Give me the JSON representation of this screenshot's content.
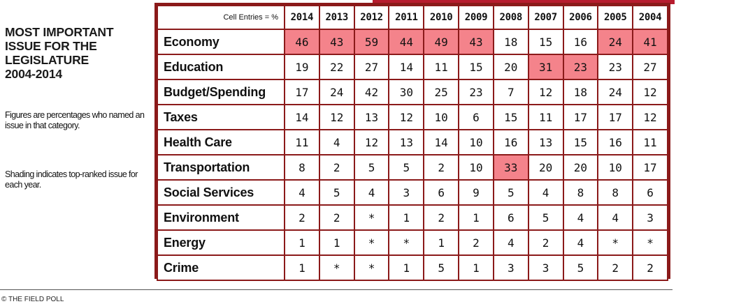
{
  "sidebar": {
    "title_lines": [
      "MOST IMPORTANT",
      "ISSUE FOR THE",
      "LEGISLATURE",
      "2004-2014"
    ],
    "note_1": "Figures are percentages who named an issue in that category.",
    "note_2": "Shading indicates top-ranked issue for each year."
  },
  "table": {
    "corner_label": "Cell Entries = %",
    "years": [
      "2014",
      "2013",
      "2012",
      "2011",
      "2010",
      "2009",
      "2008",
      "2007",
      "2006",
      "2005",
      "2004"
    ],
    "rows": [
      {
        "label": "Economy",
        "values": [
          "46",
          "43",
          "59",
          "44",
          "49",
          "43",
          "18",
          "15",
          "16",
          "24",
          "41"
        ],
        "top": [
          true,
          true,
          true,
          true,
          true,
          true,
          false,
          false,
          false,
          true,
          true
        ]
      },
      {
        "label": "Education",
        "values": [
          "19",
          "22",
          "27",
          "14",
          "11",
          "15",
          "20",
          "31",
          "23",
          "23",
          "27"
        ],
        "top": [
          false,
          false,
          false,
          false,
          false,
          false,
          false,
          true,
          true,
          false,
          false
        ]
      },
      {
        "label": "Budget/Spending",
        "values": [
          "17",
          "24",
          "42",
          "30",
          "25",
          "23",
          "7",
          "12",
          "18",
          "24",
          "12"
        ],
        "top": [
          false,
          false,
          false,
          false,
          false,
          false,
          false,
          false,
          false,
          false,
          false
        ]
      },
      {
        "label": "Taxes",
        "values": [
          "14",
          "12",
          "13",
          "12",
          "10",
          "6",
          "15",
          "11",
          "17",
          "17",
          "12"
        ],
        "top": [
          false,
          false,
          false,
          false,
          false,
          false,
          false,
          false,
          false,
          false,
          false
        ]
      },
      {
        "label": "Health Care",
        "values": [
          "11",
          "4",
          "12",
          "13",
          "14",
          "10",
          "16",
          "13",
          "15",
          "16",
          "11"
        ],
        "top": [
          false,
          false,
          false,
          false,
          false,
          false,
          false,
          false,
          false,
          false,
          false
        ]
      },
      {
        "label": "Transportation",
        "values": [
          "8",
          "2",
          "5",
          "5",
          "2",
          "10",
          "33",
          "20",
          "20",
          "10",
          "17"
        ],
        "top": [
          false,
          false,
          false,
          false,
          false,
          false,
          true,
          false,
          false,
          false,
          false
        ]
      },
      {
        "label": "Social Services",
        "values": [
          "4",
          "5",
          "4",
          "3",
          "6",
          "9",
          "5",
          "4",
          "8",
          "8",
          "6"
        ],
        "top": [
          false,
          false,
          false,
          false,
          false,
          false,
          false,
          false,
          false,
          false,
          false
        ]
      },
      {
        "label": "Environment",
        "values": [
          "2",
          "2",
          "*",
          "1",
          "2",
          "1",
          "6",
          "5",
          "4",
          "4",
          "3"
        ],
        "top": [
          false,
          false,
          false,
          false,
          false,
          false,
          false,
          false,
          false,
          false,
          false
        ]
      },
      {
        "label": "Energy",
        "values": [
          "1",
          "1",
          "*",
          "*",
          "1",
          "2",
          "4",
          "2",
          "4",
          "*",
          "*"
        ],
        "top": [
          false,
          false,
          false,
          false,
          false,
          false,
          false,
          false,
          false,
          false,
          false
        ]
      },
      {
        "label": "Crime",
        "values": [
          "1",
          "*",
          "*",
          "1",
          "5",
          "1",
          "3",
          "3",
          "5",
          "2",
          "2"
        ],
        "top": [
          false,
          false,
          false,
          false,
          false,
          false,
          false,
          false,
          false,
          false,
          false
        ]
      }
    ]
  },
  "colors": {
    "border": "#8b1a1a",
    "top_ranked_shade": "#f4838b",
    "accent": "#b71c2e"
  },
  "footer": {
    "text": "© THE FIELD POLL"
  }
}
